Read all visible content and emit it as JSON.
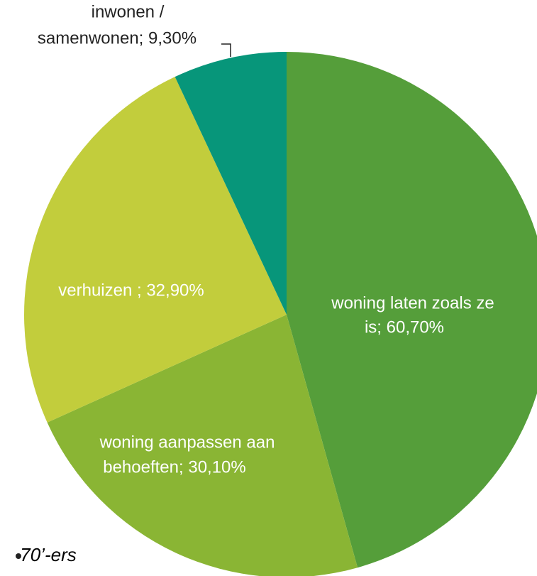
{
  "chart_data": {
    "type": "pie",
    "values": [
      60.7,
      30.1,
      32.9,
      9.3
    ],
    "colors": [
      "#559e3a",
      "#8ab534",
      "#c2cd3c",
      "#07967a"
    ],
    "data_labels": [
      [
        "woning laten zoals ze",
        "is; 60,70%"
      ],
      [
        "woning aanpassen aan",
        "behoeften; 30,10%"
      ],
      [
        "verhuizen ; 32,90%"
      ],
      [
        "inwonen /",
        "samenwonen; 9,30%"
      ]
    ],
    "note": "70’-ers"
  }
}
